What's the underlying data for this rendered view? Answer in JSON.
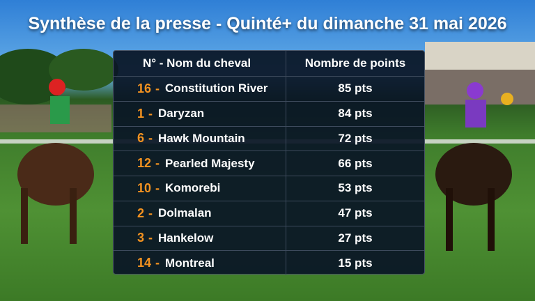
{
  "title": "Synthèse de la presse - Quinté+ du dimanche 31 mai 2026",
  "table": {
    "header": [
      "N° - Nom du cheval",
      "Nombre de points"
    ],
    "separator": "-",
    "rows": [
      {
        "number": "16",
        "name": "Constitution River",
        "points": "85 pts"
      },
      {
        "number": "1",
        "name": "Daryzan",
        "points": "84 pts"
      },
      {
        "number": "6",
        "name": "Hawk Mountain",
        "points": "72 pts"
      },
      {
        "number": "12",
        "name": "Pearled Majesty",
        "points": "66 pts"
      },
      {
        "number": "10",
        "name": "Komorebi",
        "points": "53 pts"
      },
      {
        "number": "2",
        "name": "Dolmalan",
        "points": "47 pts"
      },
      {
        "number": "3",
        "name": "Hankelow",
        "points": "27 pts"
      },
      {
        "number": "14",
        "name": "Montreal",
        "points": "15 pts"
      }
    ]
  }
}
